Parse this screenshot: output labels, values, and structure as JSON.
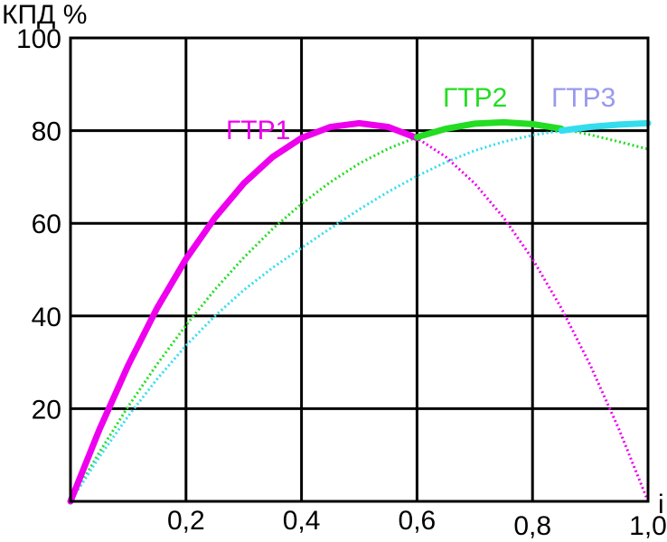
{
  "chart_data": {
    "type": "line",
    "ylabel": "КПД %",
    "xlabel": "i",
    "xlim": [
      0,
      1.0
    ],
    "ylim": [
      0,
      100
    ],
    "grid": true,
    "x_ticks": [
      {
        "value": 0.2,
        "label": "0,2"
      },
      {
        "value": 0.4,
        "label": "0,4"
      },
      {
        "value": 0.6,
        "label": "0,6"
      },
      {
        "value": 0.8,
        "label": "0,8"
      },
      {
        "value": 1.0,
        "label": "1,0"
      }
    ],
    "y_ticks": [
      {
        "value": 20,
        "label": "20"
      },
      {
        "value": 40,
        "label": "40"
      },
      {
        "value": 60,
        "label": "60"
      },
      {
        "value": 80,
        "label": "80"
      },
      {
        "value": 100,
        "label": "100"
      }
    ],
    "series": [
      {
        "name": "ГТР1",
        "color": "#ee00ee",
        "label_color": "#ee00ee",
        "solid_range": [
          0,
          0.6
        ],
        "x": [
          0,
          0.05,
          0.1,
          0.15,
          0.2,
          0.25,
          0.3,
          0.35,
          0.4,
          0.45,
          0.5,
          0.55,
          0.6,
          0.65,
          0.7,
          0.75,
          0.8,
          0.85,
          0.9,
          0.95,
          1.0
        ],
        "values": [
          0,
          15.5,
          29.4,
          41.7,
          52.3,
          61.2,
          68.6,
          74.3,
          78.4,
          80.8,
          81.6,
          80.8,
          78.4,
          74.3,
          68.6,
          61.2,
          52.3,
          41.7,
          29.4,
          15.5,
          0
        ]
      },
      {
        "name": "ГТР2",
        "color": "#22dd22",
        "label_color": "#22dd22",
        "solid_range": [
          0.6,
          0.85
        ],
        "x": [
          0,
          0.05,
          0.1,
          0.15,
          0.2,
          0.25,
          0.3,
          0.35,
          0.4,
          0.45,
          0.5,
          0.55,
          0.6,
          0.65,
          0.7,
          0.75,
          0.8,
          0.85,
          0.9,
          0.95,
          1.0
        ],
        "values": [
          0,
          10.6,
          20.5,
          29.6,
          38.0,
          45.7,
          52.6,
          58.8,
          64.2,
          68.9,
          72.9,
          76.1,
          78.6,
          80.4,
          81.5,
          81.8,
          81.4,
          80.4,
          79.1,
          77.6,
          76.0
        ]
      },
      {
        "name": "ГТР3",
        "color": "#33ddee",
        "label_color": "#9999ee",
        "solid_range": [
          0.85,
          1.0
        ],
        "x": [
          0,
          0.05,
          0.1,
          0.15,
          0.2,
          0.25,
          0.3,
          0.35,
          0.4,
          0.45,
          0.5,
          0.55,
          0.6,
          0.65,
          0.7,
          0.75,
          0.8,
          0.85,
          0.9,
          0.95,
          1.0
        ],
        "values": [
          0,
          9.6,
          18.4,
          26.4,
          33.6,
          40.0,
          45.6,
          50.4,
          54.7,
          58.9,
          63.0,
          66.8,
          70.2,
          73.2,
          75.7,
          77.6,
          79.0,
          80.0,
          80.8,
          81.3,
          81.6
        ]
      }
    ]
  }
}
